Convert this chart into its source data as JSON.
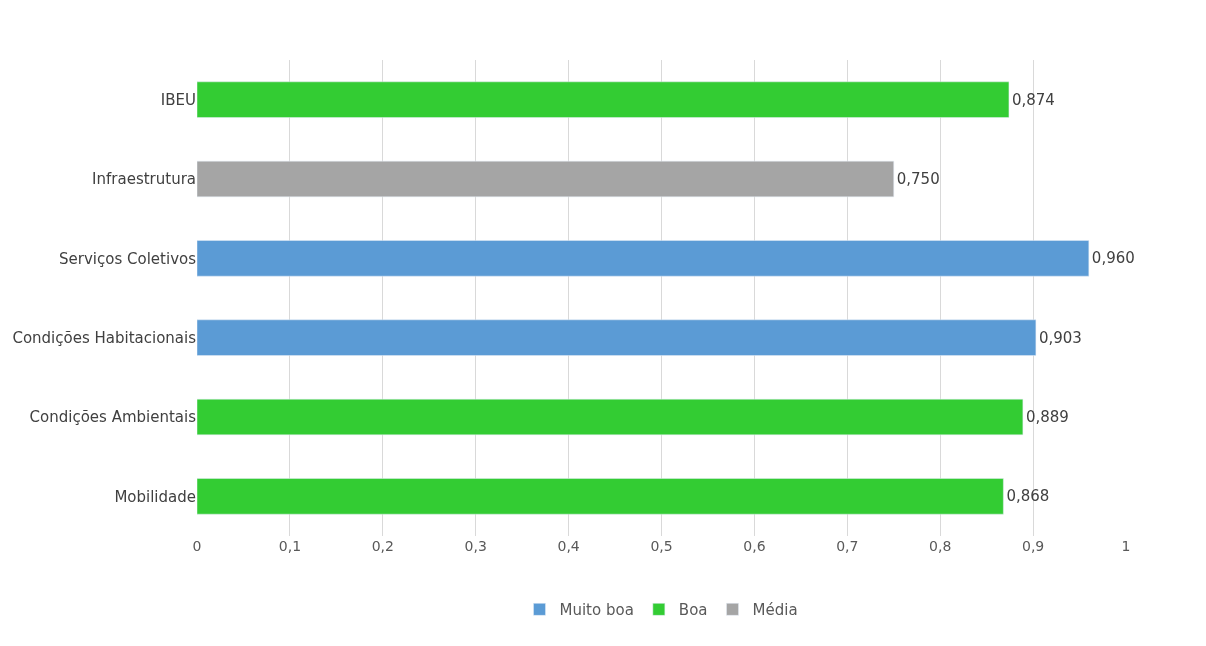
{
  "chart_data": {
    "type": "bar",
    "orientation": "horizontal",
    "categories": [
      "IBEU",
      "Infraestrutura",
      "Serviços Coletivos",
      "Condições Habitacionais",
      "Condições Ambientais",
      "Mobilidade"
    ],
    "series": [
      {
        "name": "Muito boa",
        "color": "#5b9bd5",
        "values": [
          null,
          null,
          0.96,
          0.903,
          null,
          null
        ],
        "value_labels": [
          null,
          null,
          "0,960",
          "0,903",
          null,
          null
        ]
      },
      {
        "name": "Boa",
        "color": "#33cc33",
        "values": [
          0.874,
          null,
          null,
          null,
          0.889,
          0.868
        ],
        "value_labels": [
          "0,874",
          null,
          null,
          null,
          "0,889",
          "0,868"
        ]
      },
      {
        "name": "Média",
        "color": "#a5a5a5",
        "values": [
          null,
          0.75,
          null,
          null,
          null,
          null
        ],
        "value_labels": [
          null,
          "0,750",
          null,
          null,
          null,
          null
        ]
      }
    ],
    "xlim": [
      0,
      1
    ],
    "xticks": [
      0,
      {
        "value": 0.1,
        "label": "0,1"
      },
      {
        "value": 0.2,
        "label": "0,2"
      },
      {
        "value": 0.3,
        "label": "0,3"
      },
      {
        "value": 0.4,
        "label": "0,4"
      },
      {
        "value": 0.5,
        "label": "0,5"
      },
      {
        "value": 0.6,
        "label": "0,6"
      },
      {
        "value": 0.7,
        "label": "0,7"
      },
      {
        "value": 0.8,
        "label": "0,8"
      },
      {
        "value": 0.9,
        "label": "0,9"
      },
      1
    ],
    "grid": "x",
    "legend": "bottom"
  }
}
